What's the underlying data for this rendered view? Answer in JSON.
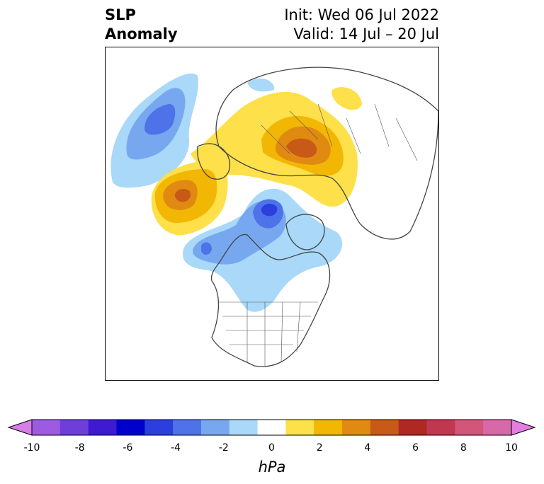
{
  "title": {
    "left_line1": "SLP",
    "left_line2": "Anomaly",
    "right_line1": "Init: Wed 06 Jul 2022",
    "right_line2": "Valid: 14 Jul – 20 Jul"
  },
  "colorbar": {
    "unit": "hPa",
    "ticks": [
      "-10",
      "-8",
      "-6",
      "-4",
      "-2",
      "0",
      "2",
      "4",
      "6",
      "8",
      "10"
    ],
    "colors": [
      "#d67ee6",
      "#9e5ae0",
      "#6e3fd8",
      "#3e1ad1",
      "#0000cd",
      "#2b3fdc",
      "#4e72e8",
      "#77a8ef",
      "#a9d8f8",
      "#ffffff",
      "#fde04a",
      "#f2b705",
      "#e08a12",
      "#c85a18",
      "#b02822",
      "#c0384f",
      "#d0567a",
      "#d869a8",
      "#e27ee0"
    ]
  },
  "legend_colors": {
    "strong_negative": "#2b3fdc",
    "moderate_negative": "#4e72e8",
    "weak_negative": "#77a8ef",
    "slight_negative": "#a9d8f8",
    "slight_positive": "#fde04a",
    "weak_positive": "#f2b705",
    "moderate_positive": "#e08a12",
    "strong_positive": "#c85a18"
  }
}
